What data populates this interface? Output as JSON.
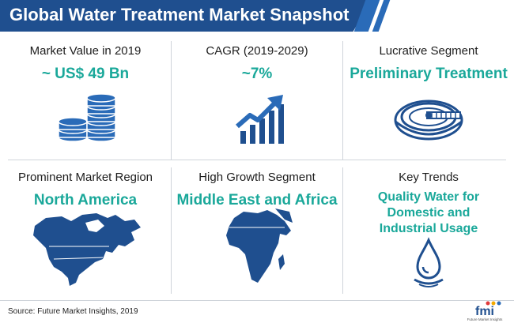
{
  "title": "Global Water Treatment Market Snapshot",
  "colors": {
    "banner": "#1f4f8f",
    "accent": "#1aa89a",
    "icon_blue": "#2a6bb8"
  },
  "cards": [
    {
      "label": "Market Value in 2019",
      "value": "~ US$ 49 Bn",
      "icon": "coin-stack-icon"
    },
    {
      "label": "CAGR (2019-2029)",
      "value": "~7%",
      "icon": "growth-chart-icon"
    },
    {
      "label": "Lucrative Segment",
      "value": "Preliminary Treatment",
      "icon": "treatment-tank-icon"
    },
    {
      "label": "Prominent Market Region",
      "value": "North America",
      "icon": "north-america-map-icon"
    },
    {
      "label": "High Growth Segment",
      "value": "Middle East and Africa",
      "icon": "africa-map-icon"
    },
    {
      "label": "Key Trends",
      "value": "Quality Water for Domestic and Industrial Usage",
      "icon": "water-drop-icon"
    }
  ],
  "footer": {
    "source": "Source: Future Market Insights, 2019",
    "logo_text": "fmi",
    "logo_subtext": "Future Market Insights"
  }
}
